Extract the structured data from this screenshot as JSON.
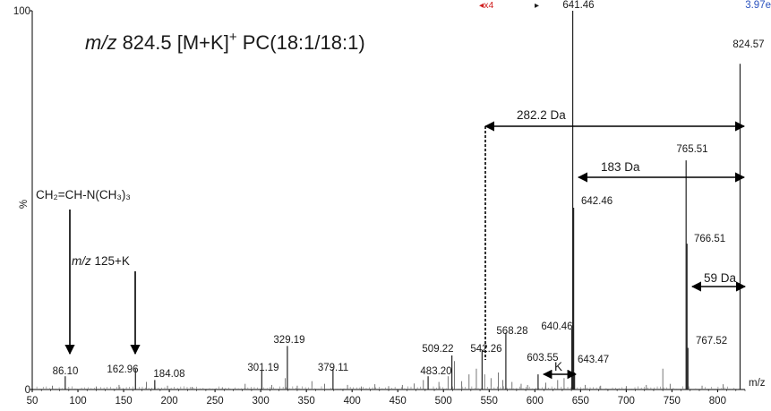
{
  "chart_data": {
    "type": "mass-spectrum",
    "title_parts": {
      "mz_italic": "m/z",
      "rest": " 824.5 [M+K]",
      "charge": "+",
      "lipid": " PC(18:1/18:1)"
    },
    "xlabel": "m/z",
    "ylabel": "%",
    "xlim": [
      50,
      830
    ],
    "ylim": [
      0,
      100
    ],
    "x_ticks": [
      50,
      100,
      150,
      200,
      250,
      300,
      350,
      400,
      450,
      500,
      550,
      600,
      650,
      700,
      750,
      800
    ],
    "y_ticks": [
      {
        "value": 0,
        "label": "0"
      },
      {
        "value": 100,
        "label": "100"
      }
    ],
    "header_marks": {
      "magnify": "x4",
      "cursor": "▸",
      "peak_label": "641.46",
      "intensity": "3.97e"
    },
    "peaks": [
      {
        "x": 86.1,
        "y": 3.5,
        "label": "86.10"
      },
      {
        "x": 162.96,
        "y": 5.5,
        "label": "162.96"
      },
      {
        "x": 184.08,
        "y": 2.5,
        "label": "184.08"
      },
      {
        "x": 301.19,
        "y": 5.0,
        "label": "301.19"
      },
      {
        "x": 329.19,
        "y": 11.5,
        "label": "329.19"
      },
      {
        "x": 379.11,
        "y": 5.5,
        "label": "379.11"
      },
      {
        "x": 483.2,
        "y": 3.5,
        "label": "483.20"
      },
      {
        "x": 509.22,
        "y": 9.0,
        "label": "509.22"
      },
      {
        "x": 542.26,
        "y": 10.5,
        "label": "542.26"
      },
      {
        "x": 568.28,
        "y": 15.0,
        "label": "568.28"
      },
      {
        "x": 603.55,
        "y": 4.0,
        "label": "603.55"
      },
      {
        "x": 640.46,
        "y": 16.0,
        "label": "640.46"
      },
      {
        "x": 641.46,
        "y": 100,
        "label": "641.46"
      },
      {
        "x": 642.46,
        "y": 48.0,
        "label": "642.46"
      },
      {
        "x": 643.47,
        "y": 4.5,
        "label": "643.47"
      },
      {
        "x": 765.51,
        "y": 60.5,
        "label": "765.51"
      },
      {
        "x": 766.51,
        "y": 38.5,
        "label": "766.51"
      },
      {
        "x": 767.52,
        "y": 11.0,
        "label": "767.52"
      },
      {
        "x": 824.57,
        "y": 86.0,
        "label": "824.57"
      }
    ],
    "minor_peaks": [
      {
        "x": 72,
        "y": 1
      },
      {
        "x": 120,
        "y": 0.8
      },
      {
        "x": 145,
        "y": 1.2
      },
      {
        "x": 175,
        "y": 2
      },
      {
        "x": 198,
        "y": 1
      },
      {
        "x": 225,
        "y": 0.7
      },
      {
        "x": 258,
        "y": 0.6
      },
      {
        "x": 283,
        "y": 1.5
      },
      {
        "x": 312,
        "y": 1.2
      },
      {
        "x": 327,
        "y": 3
      },
      {
        "x": 340,
        "y": 1
      },
      {
        "x": 356,
        "y": 2.2
      },
      {
        "x": 370,
        "y": 1.5
      },
      {
        "x": 395,
        "y": 1.2
      },
      {
        "x": 410,
        "y": 0.8
      },
      {
        "x": 425,
        "y": 1.4
      },
      {
        "x": 440,
        "y": 0.9
      },
      {
        "x": 455,
        "y": 1.2
      },
      {
        "x": 468,
        "y": 1.6
      },
      {
        "x": 478,
        "y": 2.5
      },
      {
        "x": 495,
        "y": 2.0
      },
      {
        "x": 505,
        "y": 3.5
      },
      {
        "x": 512,
        "y": 7.5
      },
      {
        "x": 520,
        "y": 2.2
      },
      {
        "x": 528,
        "y": 4.0
      },
      {
        "x": 536,
        "y": 5.5
      },
      {
        "x": 545,
        "y": 4.0
      },
      {
        "x": 552,
        "y": 3.0
      },
      {
        "x": 560,
        "y": 4.5
      },
      {
        "x": 565,
        "y": 2.5
      },
      {
        "x": 575,
        "y": 2.0
      },
      {
        "x": 585,
        "y": 1.5
      },
      {
        "x": 592,
        "y": 1.2
      },
      {
        "x": 612,
        "y": 1.8
      },
      {
        "x": 625,
        "y": 2.5
      },
      {
        "x": 632,
        "y": 3.0
      },
      {
        "x": 655,
        "y": 1.2
      },
      {
        "x": 672,
        "y": 1.0
      },
      {
        "x": 700,
        "y": 0.9
      },
      {
        "x": 722,
        "y": 1.2
      },
      {
        "x": 740,
        "y": 5.5
      },
      {
        "x": 748,
        "y": 1.5
      },
      {
        "x": 783,
        "y": 1.0
      },
      {
        "x": 806,
        "y": 1.4
      }
    ],
    "annotations": {
      "fragment_formula": "CH₂=CH-N(CH₃)₃",
      "fragment_mz_italic": "m/z",
      "fragment_mz_rest": " 125+K",
      "loss_282": "282.2 Da",
      "loss_183": "183 Da",
      "loss_59": "59 Da",
      "loss_k": "K"
    }
  }
}
